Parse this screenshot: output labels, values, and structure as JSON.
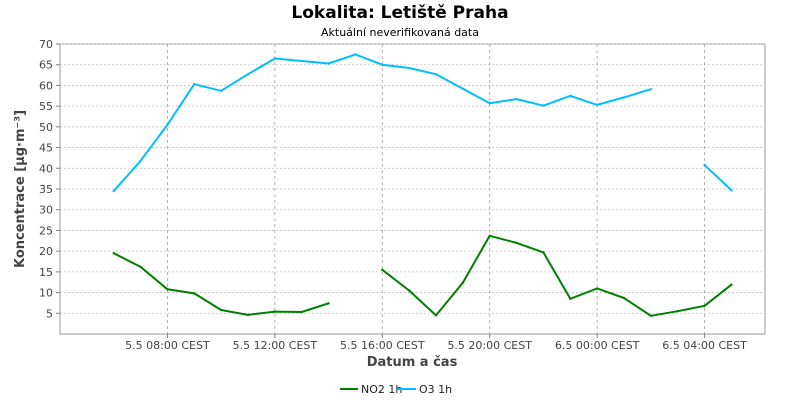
{
  "chart_data": {
    "type": "line",
    "title": "Lokalita: Letiště Praha",
    "subtitle": "Aktuální neverifikovaná data",
    "xlabel": "Datum a čas",
    "ylabel": "Koncentrace [µg·m⁻³]",
    "ylim": [
      0,
      70
    ],
    "yticks": [
      5,
      10,
      15,
      20,
      25,
      30,
      35,
      40,
      45,
      50,
      55,
      60,
      65,
      70
    ],
    "xlim": [
      "5.5 04:00",
      "6.5 06:15"
    ],
    "x": [
      "5.5 06:00",
      "5.5 07:00",
      "5.5 08:00",
      "5.5 09:00",
      "5.5 10:00",
      "5.5 11:00",
      "5.5 12:00",
      "5.5 13:00",
      "5.5 14:00",
      "5.5 15:00",
      "5.5 16:00",
      "5.5 17:00",
      "5.5 18:00",
      "5.5 19:00",
      "5.5 20:00",
      "5.5 21:00",
      "5.5 22:00",
      "5.5 23:00",
      "6.5 00:00",
      "6.5 01:00",
      "6.5 02:00",
      "6.5 03:00",
      "6.5 04:00",
      "6.5 05:00"
    ],
    "xticks": [
      {
        "x": "5.5 08:00",
        "label": "5.5 08:00 CEST"
      },
      {
        "x": "5.5 12:00",
        "label": "5.5 12:00 CEST"
      },
      {
        "x": "5.5 16:00",
        "label": "5.5 16:00 CEST"
      },
      {
        "x": "5.5 20:00",
        "label": "5.5 20:00 CEST"
      },
      {
        "x": "6.5 00:00",
        "label": "6.5 00:00 CEST"
      },
      {
        "x": "6.5 04:00",
        "label": "6.5 04:00 CEST"
      }
    ],
    "series": [
      {
        "name": "NO2 1h",
        "color": "#008000",
        "values": [
          19.5,
          16.2,
          10.8,
          9.8,
          5.8,
          4.6,
          5.4,
          5.3,
          7.4,
          null,
          15.5,
          10.5,
          4.5,
          12.4,
          23.7,
          22.0,
          19.7,
          8.5,
          11.0,
          8.7,
          4.4,
          5.5,
          6.8,
          11.9
        ]
      },
      {
        "name": "O3 1h",
        "color": "#00bfff",
        "values": [
          34.5,
          41.8,
          50.5,
          60.3,
          58.7,
          62.7,
          66.5,
          65.9,
          65.3,
          67.5,
          65.0,
          64.2,
          62.7,
          59.2,
          55.7,
          56.7,
          55.1,
          57.5,
          55.3,
          57.1,
          59.1,
          null,
          40.8,
          34.7
        ]
      }
    ],
    "grid": true,
    "legend": "bottom-center"
  }
}
